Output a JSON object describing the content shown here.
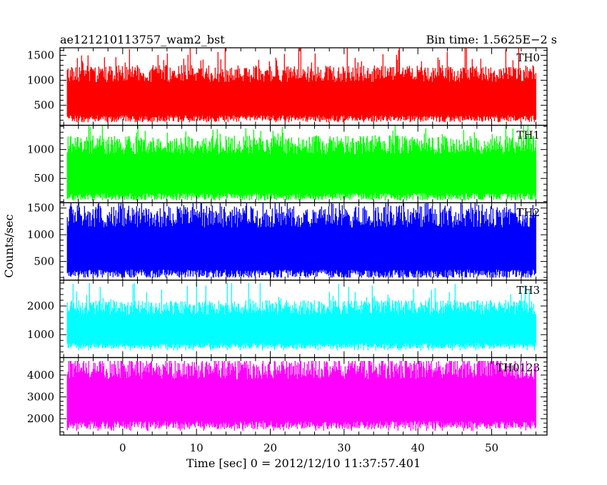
{
  "header": {
    "title": "ae121210113757_wam2_bst",
    "bin_time": "Bin time: 1.5625E−2 s"
  },
  "chart_data": {
    "type": "line",
    "render": "histogram-step",
    "title": "ae121210113757_wam2_bst",
    "bin_time_s": 0.015625,
    "xlabel": "Time [sec] 0 = 2012/12/10 11:37:57.401",
    "ylabel": "Counts/sec",
    "xlim": [
      -8.5,
      57.5
    ],
    "data_x_range": [
      -7.5,
      56.0
    ],
    "x_ticks": [
      0,
      10,
      20,
      30,
      40,
      50
    ],
    "x_tick_labels": [
      "0",
      "10",
      "20",
      "30",
      "40",
      "50"
    ],
    "grid": false,
    "legend": "none",
    "panels": [
      {
        "label": "TH0",
        "color": "#ff0000",
        "ylim": [
          100,
          1650
        ],
        "y_ticks": [
          500,
          1000,
          1500
        ],
        "y_tick_labels": [
          "500",
          "1000",
          "1500"
        ],
        "mean": 600,
        "spread": 380,
        "min": 160,
        "max": 1650,
        "typical_low": 300,
        "typical_high": 1100
      },
      {
        "label": "TH1",
        "color": "#00ff00",
        "ylim": [
          80,
          1420
        ],
        "y_ticks": [
          500,
          1000
        ],
        "y_tick_labels": [
          "500",
          "1000"
        ],
        "mean": 560,
        "spread": 360,
        "min": 120,
        "max": 1420,
        "typical_low": 250,
        "typical_high": 1050
      },
      {
        "label": "TH2",
        "color": "#0000ff",
        "ylim": [
          150,
          1600
        ],
        "y_ticks": [
          500,
          1000,
          1500
        ],
        "y_tick_labels": [
          "500",
          "1000",
          "1500"
        ],
        "mean": 720,
        "spread": 460,
        "min": 200,
        "max": 1600,
        "typical_low": 350,
        "typical_high": 1300
      },
      {
        "label": "TH3",
        "color": "#00ffff",
        "ylim": [
          200,
          2900
        ],
        "y_ticks": [
          1000,
          2000
        ],
        "y_tick_labels": [
          "1000",
          "2000"
        ],
        "mean": 1100,
        "spread": 560,
        "min": 450,
        "max": 2800,
        "typical_low": 700,
        "typical_high": 1900
      },
      {
        "label": "TH0123",
        "color": "#ff00ff",
        "ylim": [
          1250,
          4800
        ],
        "y_ticks": [
          2000,
          3000,
          4000
        ],
        "y_tick_labels": [
          "2000",
          "3000",
          "4000"
        ],
        "mean": 2800,
        "spread": 1100,
        "min": 1450,
        "max": 4650,
        "typical_low": 1900,
        "typical_high": 4200
      }
    ]
  }
}
